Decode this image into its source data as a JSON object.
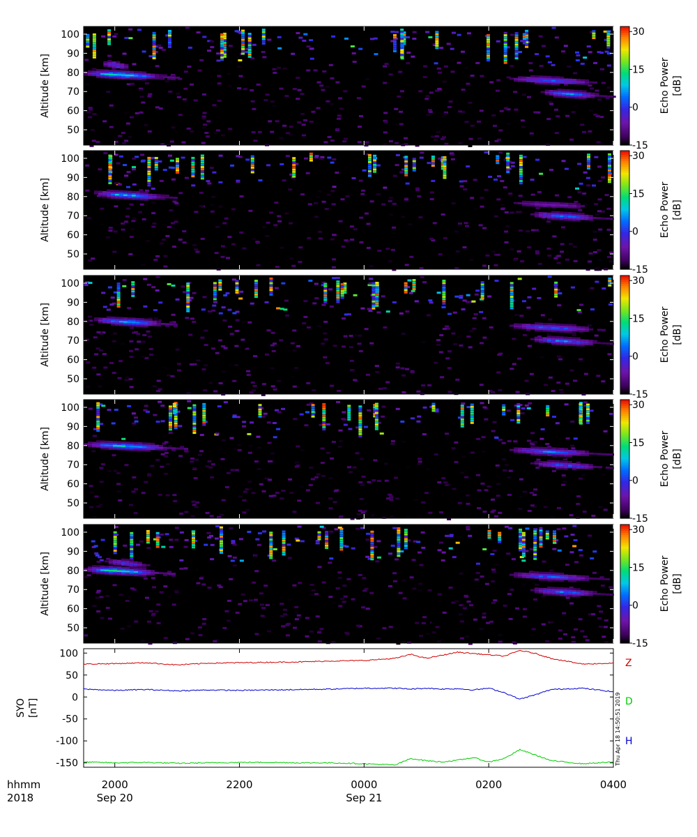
{
  "chart_data": [
    {
      "type": "heatmap",
      "panel": 1,
      "ylabel": "Altitude [km]",
      "ylim": [
        42,
        104
      ],
      "yticks": [
        50,
        60,
        70,
        80,
        90,
        100
      ],
      "colorbar": {
        "label": "Echo Power [dB]",
        "range": [
          -15,
          32
        ],
        "ticks": [
          -15,
          0,
          15,
          30
        ]
      },
      "echo_layers": [
        {
          "start": "19:30",
          "end": "21:00",
          "altitude_km": 79,
          "peak_db": 13
        },
        {
          "start": "19:45",
          "end": "20:20",
          "altitude_km": 84,
          "peak_db": 0
        },
        {
          "start": "02:20",
          "end": "04:00",
          "altitude_km": 76,
          "peak_db": 3
        },
        {
          "start": "02:50",
          "end": "04:00",
          "altitude_km": 69,
          "peak_db": 6
        }
      ]
    },
    {
      "type": "heatmap",
      "panel": 2,
      "ylabel": "Altitude [km]",
      "ylim": [
        42,
        104
      ],
      "yticks": [
        50,
        60,
        70,
        80,
        90,
        100
      ],
      "colorbar": {
        "label": "Echo Power [dB]",
        "range": [
          -15,
          32
        ],
        "ticks": [
          -15,
          0,
          15,
          30
        ]
      },
      "echo_layers": [
        {
          "start": "19:40",
          "end": "21:00",
          "altitude_km": 81,
          "peak_db": 10
        },
        {
          "start": "02:20",
          "end": "04:00",
          "altitude_km": 76,
          "peak_db": -5
        },
        {
          "start": "02:40",
          "end": "04:00",
          "altitude_km": 70,
          "peak_db": 5
        }
      ]
    },
    {
      "type": "heatmap",
      "panel": 3,
      "ylabel": "Altitude [km]",
      "ylim": [
        42,
        104
      ],
      "yticks": [
        50,
        60,
        70,
        80,
        90,
        100
      ],
      "colorbar": {
        "label": "Echo Power [dB]",
        "range": [
          -15,
          32
        ],
        "ticks": [
          -15,
          0,
          15,
          30
        ]
      },
      "echo_layers": [
        {
          "start": "19:40",
          "end": "21:00",
          "altitude_km": 80,
          "peak_db": 10
        },
        {
          "start": "02:20",
          "end": "04:00",
          "altitude_km": 77,
          "peak_db": 3
        },
        {
          "start": "02:40",
          "end": "04:00",
          "altitude_km": 70,
          "peak_db": 5
        }
      ]
    },
    {
      "type": "heatmap",
      "panel": 4,
      "ylabel": "Altitude [km]",
      "ylim": [
        42,
        104
      ],
      "yticks": [
        50,
        60,
        70,
        80,
        90,
        100
      ],
      "colorbar": {
        "label": "Echo Power [dB]",
        "range": [
          -15,
          32
        ],
        "ticks": [
          -15,
          0,
          15,
          30
        ]
      },
      "echo_layers": [
        {
          "start": "19:30",
          "end": "21:10",
          "altitude_km": 80,
          "peak_db": 10
        },
        {
          "start": "02:20",
          "end": "04:00",
          "altitude_km": 77,
          "peak_db": 5
        },
        {
          "start": "02:40",
          "end": "04:00",
          "altitude_km": 70,
          "peak_db": 2
        }
      ]
    },
    {
      "type": "heatmap",
      "panel": 5,
      "ylabel": "Altitude [km]",
      "ylim": [
        42,
        104
      ],
      "yticks": [
        50,
        60,
        70,
        80,
        90,
        100
      ],
      "colorbar": {
        "label": "Echo Power [dB]",
        "range": [
          -15,
          32
        ],
        "ticks": [
          -15,
          0,
          15,
          30
        ]
      },
      "echo_layers": [
        {
          "start": "19:30",
          "end": "20:55",
          "altitude_km": 80,
          "peak_db": 14
        },
        {
          "start": "19:50",
          "end": "20:40",
          "altitude_km": 84,
          "peak_db": 0
        },
        {
          "start": "02:20",
          "end": "04:00",
          "altitude_km": 77,
          "peak_db": 3
        },
        {
          "start": "02:40",
          "end": "04:00",
          "altitude_km": 69,
          "peak_db": 5
        }
      ]
    },
    {
      "type": "line",
      "panel": 6,
      "ylabel": "SYO [nT]",
      "ylim": [
        -160,
        110
      ],
      "yticks": [
        -150,
        -100,
        -50,
        0,
        50,
        100
      ],
      "series": [
        {
          "name": "Z",
          "color": "#d00000",
          "x": [
            "19:30",
            "20:00",
            "20:30",
            "21:00",
            "21:30",
            "22:00",
            "22:30",
            "23:00",
            "23:30",
            "00:00",
            "00:30",
            "00:45",
            "01:00",
            "01:15",
            "01:30",
            "01:45",
            "02:00",
            "02:15",
            "02:30",
            "02:45",
            "03:00",
            "03:30",
            "04:00"
          ],
          "values": [
            75,
            76,
            78,
            73,
            77,
            78,
            79,
            80,
            82,
            83,
            88,
            97,
            88,
            95,
            102,
            99,
            96,
            93,
            106,
            99,
            88,
            75,
            77
          ]
        },
        {
          "name": "D",
          "color": "#00cc00",
          "x": [
            "19:30",
            "20:00",
            "20:30",
            "21:00",
            "21:30",
            "22:00",
            "22:30",
            "23:00",
            "23:30",
            "00:00",
            "00:30",
            "00:45",
            "01:00",
            "01:15",
            "01:30",
            "01:45",
            "02:00",
            "02:15",
            "02:30",
            "02:45",
            "03:00",
            "03:30",
            "04:00"
          ],
          "values": [
            -148,
            -150,
            -149,
            -151,
            -150,
            -149,
            -149,
            -150,
            -150,
            -152,
            -155,
            -140,
            -145,
            -148,
            -144,
            -138,
            -148,
            -140,
            -120,
            -132,
            -145,
            -152,
            -148
          ]
        },
        {
          "name": "H",
          "color": "#0000cc",
          "x": [
            "19:30",
            "20:00",
            "20:30",
            "21:00",
            "21:30",
            "22:00",
            "22:30",
            "23:00",
            "23:30",
            "00:00",
            "00:30",
            "00:45",
            "01:00",
            "01:15",
            "01:30",
            "01:45",
            "02:00",
            "02:15",
            "02:30",
            "02:45",
            "03:00",
            "03:30",
            "04:00"
          ],
          "values": [
            18,
            15,
            17,
            14,
            16,
            15,
            16,
            17,
            18,
            20,
            20,
            18,
            20,
            18,
            19,
            16,
            20,
            10,
            -5,
            5,
            17,
            20,
            12
          ]
        }
      ]
    }
  ],
  "time_axis": {
    "row_labels": [
      "hhmm",
      "2018"
    ],
    "ticks": [
      {
        "time": "2000",
        "date": "Sep 20"
      },
      {
        "time": "2200",
        "date": ""
      },
      {
        "time": "0000",
        "date": "Sep 21"
      },
      {
        "time": "0200",
        "date": ""
      },
      {
        "time": "0400",
        "date": ""
      }
    ]
  },
  "stamp": "Thu Apr 18 14:50:51 2019"
}
